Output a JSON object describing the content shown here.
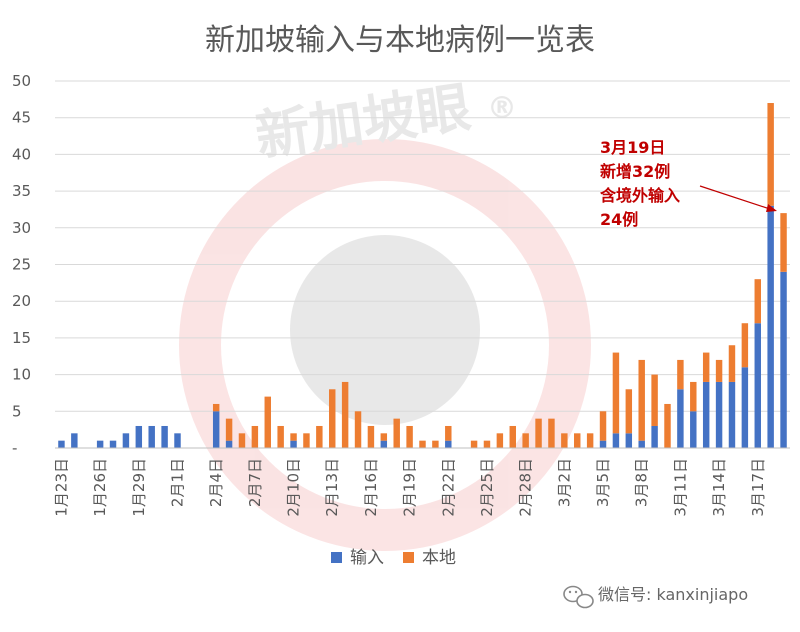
{
  "colors": {
    "import": "#4472c4",
    "local": "#ed7d31",
    "grid": "#d9d9d9",
    "text": "#595959",
    "annotation": "#c00000"
  },
  "watermark": {
    "text": "新加坡眼",
    "mark": "®"
  },
  "annotation": {
    "lines": [
      "3月19日",
      "新增32例",
      "含境外输入",
      "24例"
    ]
  },
  "footer": {
    "text": "微信号: kanxinjiapo",
    "icon": "wechat-icon"
  },
  "chart_data": {
    "type": "bar",
    "stacked": true,
    "title": "新加坡输入与本地病例一览表",
    "ylim": [
      0,
      50
    ],
    "y_ticks": [
      "-",
      "5",
      "10",
      "15",
      "20",
      "25",
      "30",
      "35",
      "40",
      "45",
      "50"
    ],
    "grid": true,
    "legend_position": "bottom",
    "categories": [
      "1月23日",
      "1月24日",
      "1月25日",
      "1月26日",
      "1月27日",
      "1月28日",
      "1月29日",
      "1月30日",
      "1月31日",
      "2月1日",
      "2月2日",
      "2月3日",
      "2月4日",
      "2月5日",
      "2月6日",
      "2月7日",
      "2月8日",
      "2月9日",
      "2月10日",
      "2月11日",
      "2月12日",
      "2月13日",
      "2月14日",
      "2月15日",
      "2月16日",
      "2月17日",
      "2月18日",
      "2月19日",
      "2月20日",
      "2月21日",
      "2月22日",
      "2月23日",
      "2月24日",
      "2月25日",
      "2月26日",
      "2月27日",
      "2月28日",
      "2月29日",
      "3月1日",
      "3月2日",
      "3月3日",
      "3月4日",
      "3月5日",
      "3月6日",
      "3月7日",
      "3月8日",
      "3月9日",
      "3月10日",
      "3月11日",
      "3月12日",
      "3月13日",
      "3月14日",
      "3月15日",
      "3月16日",
      "3月17日",
      "3月18日",
      "3月19日"
    ],
    "x_tick_labels": [
      "1月23日",
      "1月26日",
      "1月29日",
      "2月1日",
      "2月4日",
      "2月7日",
      "2月10日",
      "2月13日",
      "2月16日",
      "2月19日",
      "2月22日",
      "2月25日",
      "2月28日",
      "3月2日",
      "3月5日",
      "3月8日",
      "3月11日",
      "3月14日",
      "3月17日"
    ],
    "series": [
      {
        "name": "输入",
        "color": "#4472c4",
        "values": [
          1,
          2,
          0,
          1,
          1,
          2,
          3,
          3,
          3,
          2,
          0,
          0,
          5,
          1,
          0,
          0,
          0,
          0,
          1,
          0,
          0,
          0,
          0,
          0,
          0,
          1,
          0,
          0,
          0,
          0,
          1,
          0,
          0,
          0,
          0,
          0,
          0,
          0,
          0,
          0,
          0,
          0,
          1,
          2,
          2,
          1,
          3,
          0,
          8,
          5,
          9,
          9,
          9,
          11,
          17,
          33,
          24
        ]
      },
      {
        "name": "本地",
        "color": "#ed7d31",
        "values": [
          0,
          0,
          0,
          0,
          0,
          0,
          0,
          0,
          0,
          0,
          0,
          0,
          1,
          3,
          2,
          3,
          7,
          3,
          1,
          2,
          3,
          8,
          9,
          5,
          3,
          1,
          4,
          3,
          1,
          1,
          2,
          0,
          1,
          1,
          2,
          3,
          2,
          4,
          4,
          2,
          2,
          2,
          4,
          11,
          6,
          11,
          7,
          6,
          4,
          4,
          4,
          3,
          5,
          6,
          6,
          14,
          8
        ]
      }
    ]
  }
}
